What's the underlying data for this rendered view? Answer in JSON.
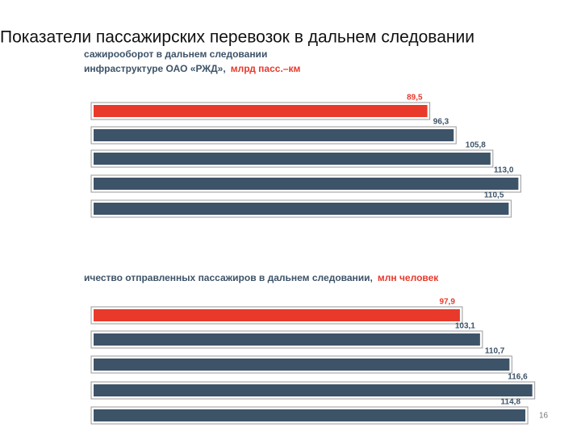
{
  "title": "Показатели пассажирских перевозок в дальнем следовании",
  "page_number": "16",
  "chart_data": [
    {
      "type": "bar",
      "orientation": "horizontal",
      "title_lines": [
        "сажирооборот в дальнем следовании",
        "инфраструктуре ОАО «РЖД»,"
      ],
      "unit": "млрд пасс.–км",
      "categories": [
        null,
        null,
        null,
        null,
        null
      ],
      "values": [
        89.5,
        96.3,
        105.8,
        113.0,
        110.5
      ],
      "value_labels": [
        "89,5",
        "96,3",
        "105,8",
        "113,0",
        "110,5"
      ],
      "colors": [
        "#e8392b",
        "#3d5368",
        "#3d5368",
        "#3d5368",
        "#3d5368"
      ]
    },
    {
      "type": "bar",
      "orientation": "horizontal",
      "title_lines": [
        "ичество отправленных пассажиров в дальнем следовании,"
      ],
      "unit": "млн человек",
      "categories": [
        null,
        null,
        null,
        null,
        null
      ],
      "values": [
        97.9,
        103.1,
        110.7,
        116.6,
        114.8
      ],
      "value_labels": [
        "97,9",
        "103,1",
        "110,7",
        "116,6",
        "114,8"
      ],
      "colors": [
        "#e8392b",
        "#3d5368",
        "#3d5368",
        "#3d5368",
        "#3d5368"
      ]
    }
  ]
}
